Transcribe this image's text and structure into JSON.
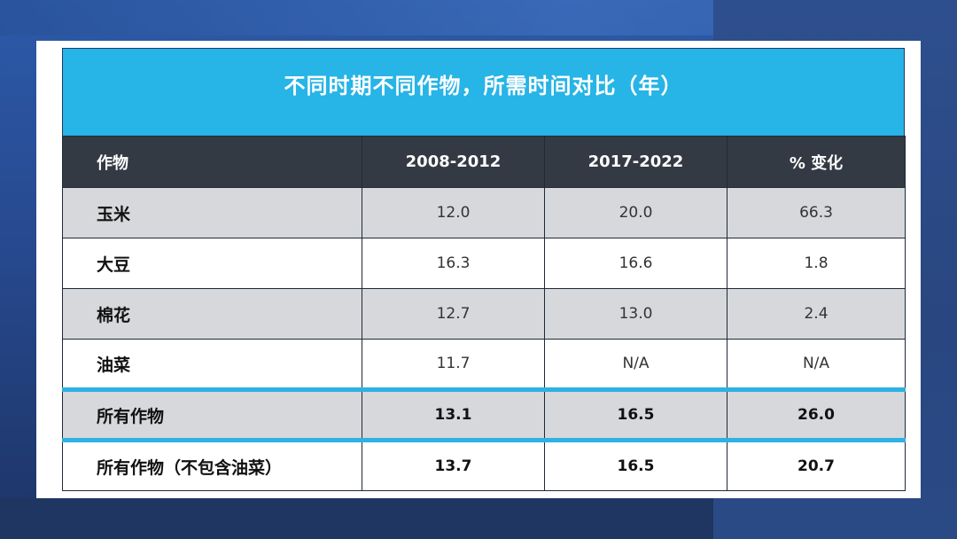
{
  "table": {
    "title": "不同时期不同作物，所需时间对比（年）",
    "headers": [
      "作物",
      "2008-2012",
      "2017-2022",
      "% 变化"
    ],
    "rows": [
      {
        "crop": "玉米",
        "p1": "12.0",
        "p2": "20.0",
        "change": "66.3"
      },
      {
        "crop": "大豆",
        "p1": "16.3",
        "p2": "16.6",
        "change": "1.8"
      },
      {
        "crop": "棉花",
        "p1": "12.7",
        "p2": "13.0",
        "change": "2.4"
      },
      {
        "crop": "油菜",
        "p1": "11.7",
        "p2": "N/A",
        "change": "N/A"
      },
      {
        "crop": "所有作物",
        "p1": "13.1",
        "p2": "16.5",
        "change": "26.0"
      },
      {
        "crop": "所有作物（不包含油菜）",
        "p1": "13.7",
        "p2": "16.5",
        "change": "20.7"
      }
    ]
  },
  "colors": {
    "title_bg": "#27b4e6",
    "header_bg": "#343a44",
    "shaded_row": "#d7d8db",
    "accent_line": "#2eb1e3"
  }
}
